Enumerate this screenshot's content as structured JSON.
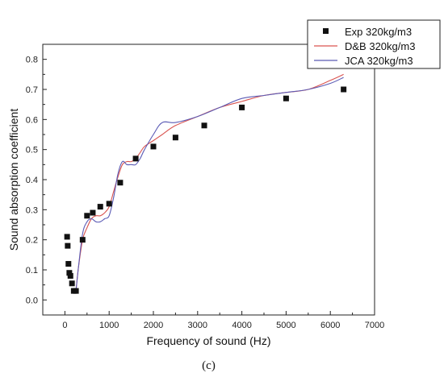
{
  "chart_data": {
    "type": "scatter",
    "title": "",
    "xlabel": "Frequency of sound (Hz)",
    "ylabel": "Sound absorption coefficient",
    "panel_label": "(c)",
    "xlim": [
      -500,
      7000
    ],
    "ylim": [
      -0.05,
      0.85
    ],
    "xticks": [
      0,
      1000,
      2000,
      3000,
      4000,
      5000,
      6000,
      7000
    ],
    "yticks": [
      0.0,
      0.1,
      0.2,
      0.3,
      0.4,
      0.5,
      0.6,
      0.7,
      0.8
    ],
    "grid": false,
    "legend_position": "top-right",
    "series": [
      {
        "name": "Exp 320kg/m3",
        "kind": "markers",
        "color": "#111111",
        "x": [
          50,
          63,
          80,
          100,
          125,
          160,
          200,
          250,
          400,
          500,
          630,
          800,
          1000,
          1250,
          1600,
          2000,
          2500,
          3150,
          4000,
          5000,
          6300
        ],
        "y": [
          0.21,
          0.18,
          0.12,
          0.09,
          0.08,
          0.055,
          0.03,
          0.03,
          0.2,
          0.28,
          0.29,
          0.31,
          0.32,
          0.39,
          0.47,
          0.51,
          0.54,
          0.58,
          0.64,
          0.67,
          0.7
        ]
      },
      {
        "name": "D&B 320kg/m3",
        "kind": "line",
        "color": "#d9534f",
        "x": [
          250,
          300,
          400,
          500,
          600,
          700,
          800,
          900,
          1000,
          1100,
          1200,
          1300,
          1400,
          1500,
          1600,
          1700,
          1800,
          2000,
          2200,
          2500,
          3000,
          3500,
          4000,
          4500,
          5000,
          5500,
          6000,
          6300
        ],
        "y": [
          0.03,
          0.1,
          0.2,
          0.24,
          0.27,
          0.28,
          0.28,
          0.29,
          0.31,
          0.36,
          0.41,
          0.45,
          0.46,
          0.46,
          0.47,
          0.49,
          0.51,
          0.53,
          0.55,
          0.58,
          0.61,
          0.64,
          0.66,
          0.68,
          0.69,
          0.7,
          0.73,
          0.75
        ]
      },
      {
        "name": "JCA 320kg/m3",
        "kind": "line",
        "color": "#5b5bb5",
        "x": [
          250,
          300,
          400,
          500,
          600,
          700,
          800,
          900,
          1000,
          1100,
          1200,
          1300,
          1400,
          1500,
          1600,
          1700,
          1800,
          2000,
          2200,
          2500,
          3000,
          3500,
          4000,
          4500,
          5000,
          5500,
          6000,
          6300
        ],
        "y": [
          0.03,
          0.1,
          0.22,
          0.26,
          0.27,
          0.26,
          0.26,
          0.27,
          0.28,
          0.34,
          0.42,
          0.46,
          0.45,
          0.45,
          0.45,
          0.47,
          0.5,
          0.55,
          0.59,
          0.59,
          0.61,
          0.64,
          0.67,
          0.68,
          0.69,
          0.7,
          0.72,
          0.74
        ]
      }
    ]
  }
}
